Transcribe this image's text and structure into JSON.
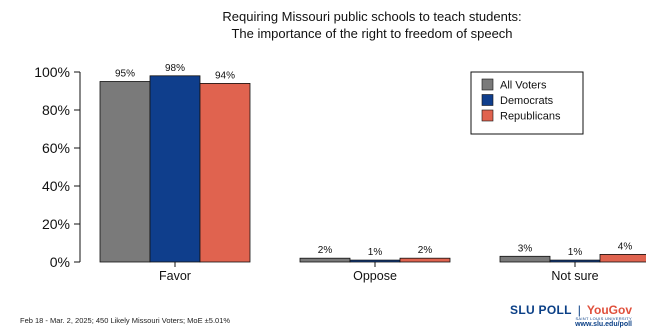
{
  "chart_data": {
    "type": "bar",
    "title": "Requiring Missouri public schools to teach students:",
    "subtitle": "The importance of the right to freedom of speech",
    "categories": [
      "Favor",
      "Oppose",
      "Not sure"
    ],
    "series": [
      {
        "name": "All Voters",
        "values": [
          95,
          2,
          3
        ],
        "labels": [
          "95%",
          "2%",
          "3%"
        ],
        "color": "#7a7a7a"
      },
      {
        "name": "Democrats",
        "values": [
          98,
          1,
          1
        ],
        "labels": [
          "98%",
          "1%",
          "1%"
        ],
        "color": "#0f3e8c"
      },
      {
        "name": "Republicans",
        "values": [
          94,
          2,
          4
        ],
        "labels": [
          "94%",
          "2%",
          "4%"
        ],
        "color": "#e0634f"
      }
    ],
    "yticks": [
      "0%",
      "20%",
      "40%",
      "60%",
      "80%",
      "100%"
    ],
    "ylim": [
      0,
      100
    ],
    "legend_position": "top-right",
    "grid": false
  },
  "footnote": "Feb 18 - Mar. 2, 2025; 450 Likely Missouri Voters; MoE ±5.01%",
  "logo": {
    "slu": "SLU POLL",
    "separator": "|",
    "yougov": "YouGov",
    "slu_sub": "SAINT LOUIS UNIVERSITY",
    "url": "www.slu.edu/poll"
  }
}
